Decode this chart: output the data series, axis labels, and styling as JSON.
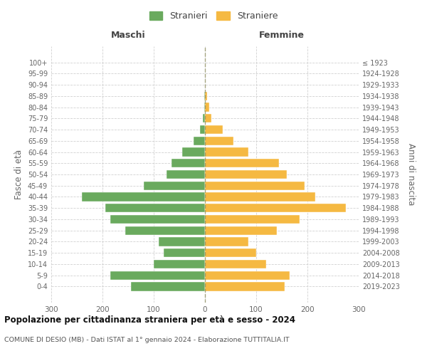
{
  "age_groups": [
    "0-4",
    "5-9",
    "10-14",
    "15-19",
    "20-24",
    "25-29",
    "30-34",
    "35-39",
    "40-44",
    "45-49",
    "50-54",
    "55-59",
    "60-64",
    "65-69",
    "70-74",
    "75-79",
    "80-84",
    "85-89",
    "90-94",
    "95-99",
    "100+"
  ],
  "birth_years": [
    "2019-2023",
    "2014-2018",
    "2009-2013",
    "2004-2008",
    "1999-2003",
    "1994-1998",
    "1989-1993",
    "1984-1988",
    "1979-1983",
    "1974-1978",
    "1969-1973",
    "1964-1968",
    "1959-1963",
    "1954-1958",
    "1949-1953",
    "1944-1948",
    "1939-1943",
    "1934-1938",
    "1929-1933",
    "1924-1928",
    "≤ 1923"
  ],
  "maschi": [
    145,
    185,
    100,
    80,
    90,
    155,
    185,
    195,
    240,
    120,
    75,
    65,
    45,
    22,
    10,
    4,
    2,
    2,
    0,
    0,
    0
  ],
  "femmine": [
    155,
    165,
    120,
    100,
    85,
    140,
    185,
    275,
    215,
    195,
    160,
    145,
    85,
    55,
    35,
    12,
    8,
    4,
    0,
    0,
    0
  ],
  "color_maschi": "#6aaa5e",
  "color_femmine": "#f5b942",
  "title": "Popolazione per cittadinanza straniera per età e sesso - 2024",
  "subtitle": "COMUNE DI DESIO (MB) - Dati ISTAT al 1° gennaio 2024 - Elaborazione TUTTITALIA.IT",
  "xlabel_left": "Maschi",
  "xlabel_right": "Femmine",
  "ylabel_left": "Fasce di età",
  "ylabel_right": "Anni di nascita",
  "legend_maschi": "Stranieri",
  "legend_femmine": "Straniere",
  "xlim": 300,
  "background_color": "#ffffff",
  "grid_color": "#cccccc"
}
